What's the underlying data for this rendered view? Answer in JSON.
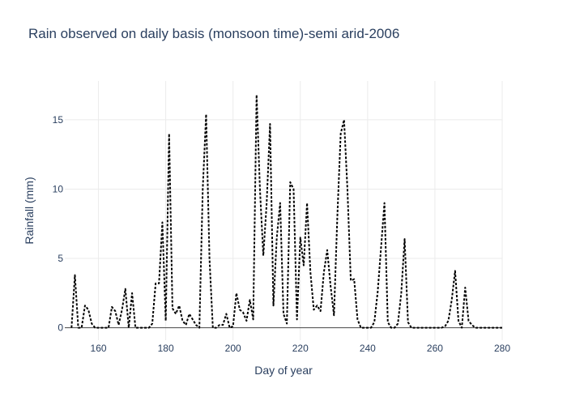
{
  "chart_data": {
    "type": "line",
    "title": "Rain observed on daily basis (monsoon time)-semi arid-2006",
    "xlabel": "Day of year",
    "ylabel": "Rainfall (mm)",
    "xlim": [
      150,
      280
    ],
    "ylim": [
      -0.9,
      17.8
    ],
    "xticks": [
      160,
      180,
      200,
      220,
      240,
      260,
      280
    ],
    "yticks": [
      0,
      5,
      10,
      15
    ],
    "grid": true,
    "line_color": "#000000",
    "line_style": "dotted",
    "series": [
      {
        "x": [
          152,
          153,
          154,
          155,
          156,
          157,
          158,
          159,
          160,
          161,
          162,
          163,
          164,
          165,
          166,
          167,
          168,
          169,
          170,
          171,
          172,
          173,
          174,
          175,
          176,
          177,
          178,
          179,
          180,
          181,
          182,
          183,
          184,
          185,
          186,
          187,
          188,
          189,
          190,
          191,
          192,
          193,
          194,
          195,
          196,
          197,
          198,
          199,
          200,
          201,
          202,
          203,
          204,
          205,
          206,
          207,
          208,
          209,
          210,
          211,
          212,
          213,
          214,
          215,
          216,
          217,
          218,
          219,
          220,
          221,
          222,
          223,
          224,
          225,
          226,
          227,
          228,
          229,
          230,
          231,
          232,
          233,
          234,
          235,
          236,
          237,
          238,
          239,
          240,
          241,
          242,
          243,
          244,
          245,
          246,
          247,
          248,
          249,
          250,
          251,
          252,
          253,
          254,
          255,
          256,
          257,
          258,
          259,
          260,
          261,
          262,
          263,
          264,
          265,
          266,
          267,
          268,
          269,
          270,
          271,
          272,
          273,
          274,
          275,
          276,
          277,
          278,
          279,
          280
        ],
        "values": [
          0,
          3.8,
          0,
          0,
          1.6,
          1.3,
          0.3,
          0,
          0,
          0,
          0,
          0,
          1.5,
          1.2,
          0.2,
          1.3,
          2.8,
          0,
          2.5,
          0,
          0,
          0,
          0,
          0,
          0.3,
          3.2,
          3.2,
          7.6,
          0.5,
          14,
          1.4,
          1,
          1.6,
          0.5,
          0.2,
          1,
          0.6,
          0.2,
          0,
          10,
          15.4,
          5,
          0,
          0,
          0.2,
          0.2,
          1,
          0,
          0.1,
          2.5,
          1.3,
          1.1,
          0.5,
          2,
          0.6,
          16.8,
          10,
          5.2,
          9,
          14.7,
          1.6,
          6.5,
          9,
          1,
          0.3,
          10.5,
          10,
          0.6,
          6.5,
          4.5,
          9,
          4,
          1.3,
          1.6,
          1.2,
          4,
          5.6,
          3,
          0.9,
          8,
          14,
          15,
          10,
          3.4,
          3.5,
          0.6,
          0,
          0,
          0,
          0,
          0.4,
          2.6,
          5.8,
          9,
          0.4,
          0,
          0,
          0.3,
          2.5,
          6.4,
          0.4,
          0,
          0,
          0,
          0,
          0,
          0,
          0,
          0,
          0,
          0,
          0.1,
          0.5,
          2,
          4.1,
          0.5,
          0,
          2.9,
          0.5,
          0.2,
          0,
          0,
          0,
          0,
          0,
          0,
          0,
          0,
          0
        ]
      }
    ]
  }
}
